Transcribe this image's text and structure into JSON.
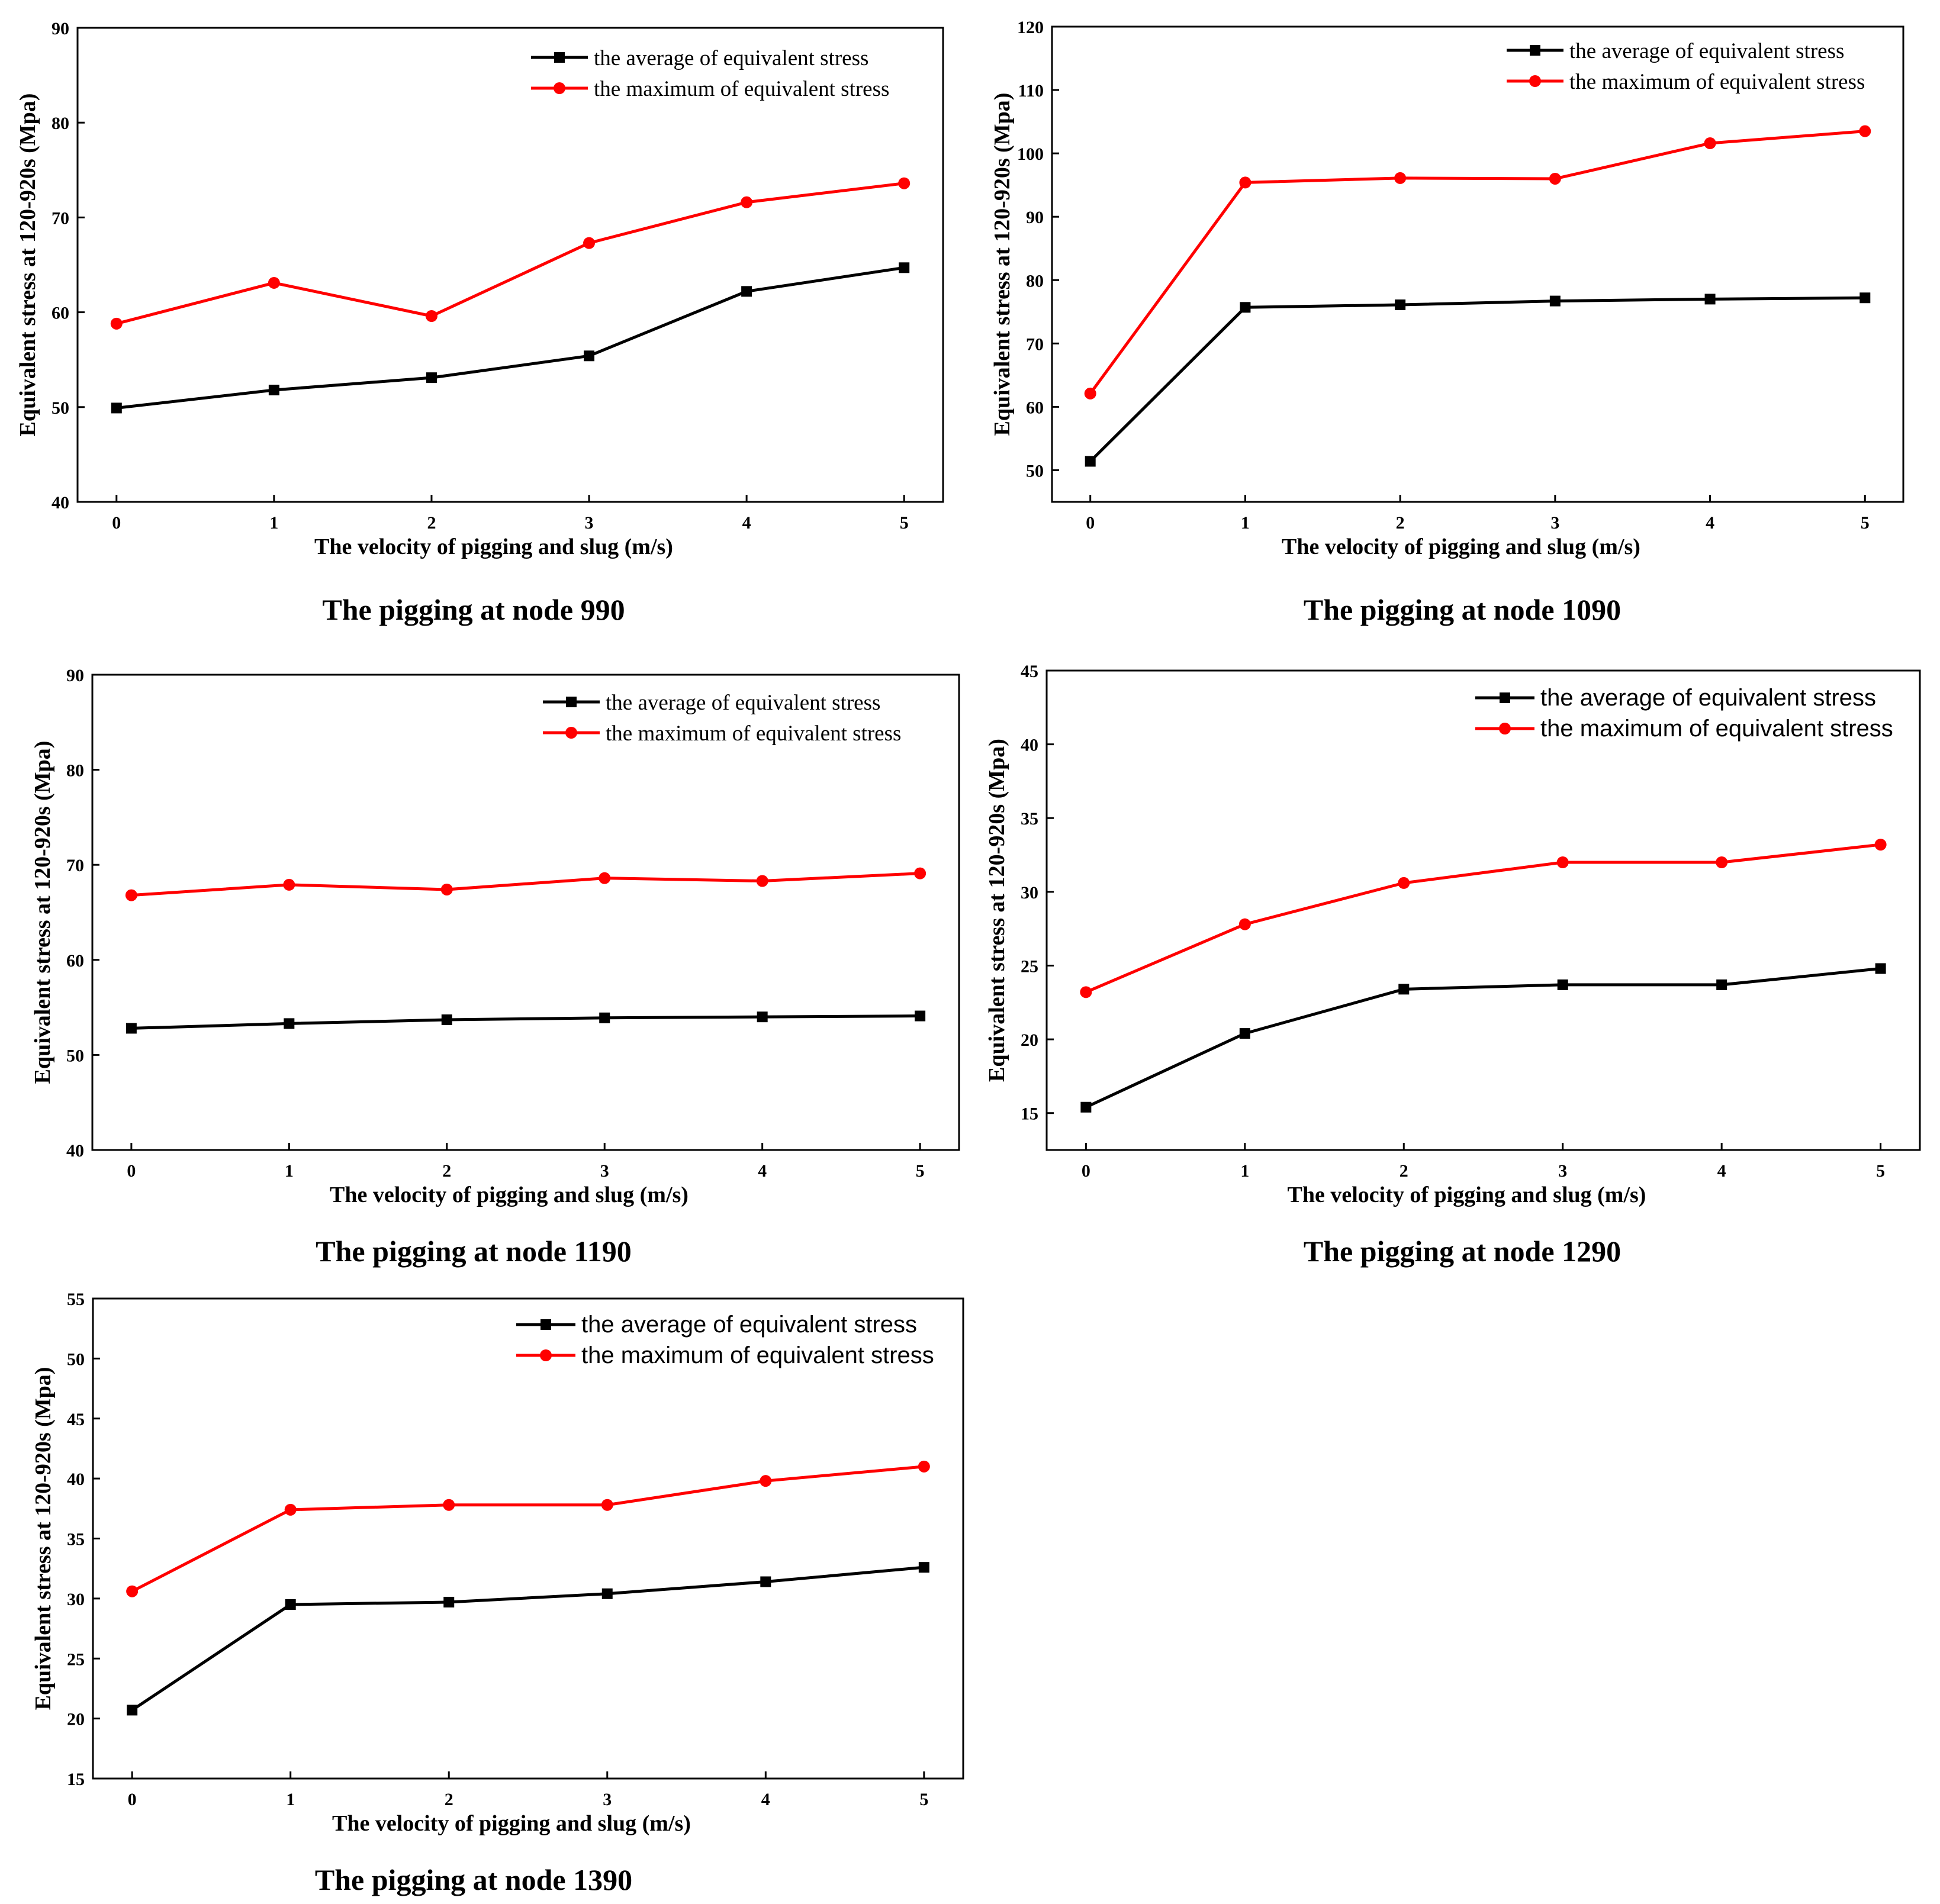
{
  "chart_data": [
    {
      "type": "line",
      "x": [
        0,
        1,
        2,
        3,
        4,
        5
      ],
      "xlabel": "The velocity of pigging and slug (m/s)",
      "ylabel": "Equivalent stress at 120-920s (Mpa)",
      "ylim": [
        40,
        90
      ],
      "yticks": [
        40,
        50,
        60,
        70,
        80,
        90
      ],
      "caption": "The pigging at node 990",
      "legend_position": "top-right",
      "series": [
        {
          "name": "the average of equivalent stress",
          "color": "#000000",
          "marker": "square",
          "values": [
            49.9,
            51.8,
            53.1,
            55.4,
            62.2,
            64.7
          ]
        },
        {
          "name": "the maximum of equivalent stress",
          "color": "#ff0000",
          "marker": "circle",
          "values": [
            58.8,
            63.1,
            59.6,
            67.3,
            71.6,
            73.6
          ]
        }
      ]
    },
    {
      "type": "line",
      "x": [
        0,
        1,
        2,
        3,
        4,
        5
      ],
      "xlabel": "The velocity of pigging and slug (m/s)",
      "ylabel": "Equivalent stress at 120-920s (Mpa)",
      "ylim": [
        45,
        120
      ],
      "yticks": [
        50,
        60,
        70,
        80,
        90,
        100,
        110,
        120
      ],
      "caption": "The pigging at node 1090",
      "legend_position": "top-right",
      "series": [
        {
          "name": "the average of equivalent stress",
          "color": "#000000",
          "marker": "square",
          "values": [
            51.4,
            75.7,
            76.1,
            76.7,
            77.0,
            77.2
          ]
        },
        {
          "name": "the maximum of equivalent stress",
          "color": "#ff0000",
          "marker": "circle",
          "values": [
            62.1,
            95.4,
            96.1,
            96.0,
            101.6,
            103.5
          ]
        }
      ]
    },
    {
      "type": "line",
      "x": [
        0,
        1,
        2,
        3,
        4,
        5
      ],
      "xlabel": "The velocity of pigging and slug (m/s)",
      "ylabel": "Equivalent stress at 120-920s (Mpa)",
      "ylim": [
        40,
        90
      ],
      "yticks": [
        40,
        50,
        60,
        70,
        80,
        90
      ],
      "caption": "The pigging at node 1190",
      "legend_position": "top-right",
      "series": [
        {
          "name": "the average of equivalent stress",
          "color": "#000000",
          "marker": "square",
          "values": [
            52.8,
            53.3,
            53.7,
            53.9,
            54.0,
            54.1
          ]
        },
        {
          "name": "the maximum of equivalent stress",
          "color": "#ff0000",
          "marker": "circle",
          "values": [
            66.8,
            67.9,
            67.4,
            68.6,
            68.3,
            69.1
          ]
        }
      ]
    },
    {
      "type": "line",
      "x": [
        0,
        1,
        2,
        3,
        4,
        5
      ],
      "xlabel": "The velocity of pigging and slug (m/s)",
      "ylabel": "Equivalent stress at 120-920s (Mpa)",
      "ylim": [
        12.5,
        45
      ],
      "yticks": [
        15,
        20,
        25,
        30,
        35,
        40,
        45
      ],
      "caption": "The pigging at node 1290",
      "legend_position": "top-right",
      "series": [
        {
          "name": "the average of equivalent stress",
          "color": "#000000",
          "marker": "square",
          "values": [
            15.4,
            20.4,
            23.4,
            23.7,
            23.7,
            24.8
          ]
        },
        {
          "name": "the maximum of equivalent stress",
          "color": "#ff0000",
          "marker": "circle",
          "values": [
            23.2,
            27.8,
            30.6,
            32.0,
            32.0,
            33.2
          ]
        }
      ]
    },
    {
      "type": "line",
      "x": [
        0,
        1,
        2,
        3,
        4,
        5
      ],
      "xlabel": "The velocity of pigging and slug (m/s)",
      "ylabel": "Equivalent stress at 120-920s (Mpa)",
      "ylim": [
        15,
        55
      ],
      "yticks": [
        15,
        20,
        25,
        30,
        35,
        40,
        45,
        50,
        55
      ],
      "caption": "The pigging at node 1390",
      "legend_position": "top-right",
      "series": [
        {
          "name": "the average of equivalent stress",
          "color": "#000000",
          "marker": "square",
          "values": [
            20.7,
            29.5,
            29.7,
            30.4,
            31.4,
            32.6
          ]
        },
        {
          "name": "the maximum of equivalent stress",
          "color": "#ff0000",
          "marker": "circle",
          "values": [
            30.6,
            37.4,
            37.8,
            37.8,
            39.8,
            41.0
          ]
        }
      ]
    }
  ]
}
